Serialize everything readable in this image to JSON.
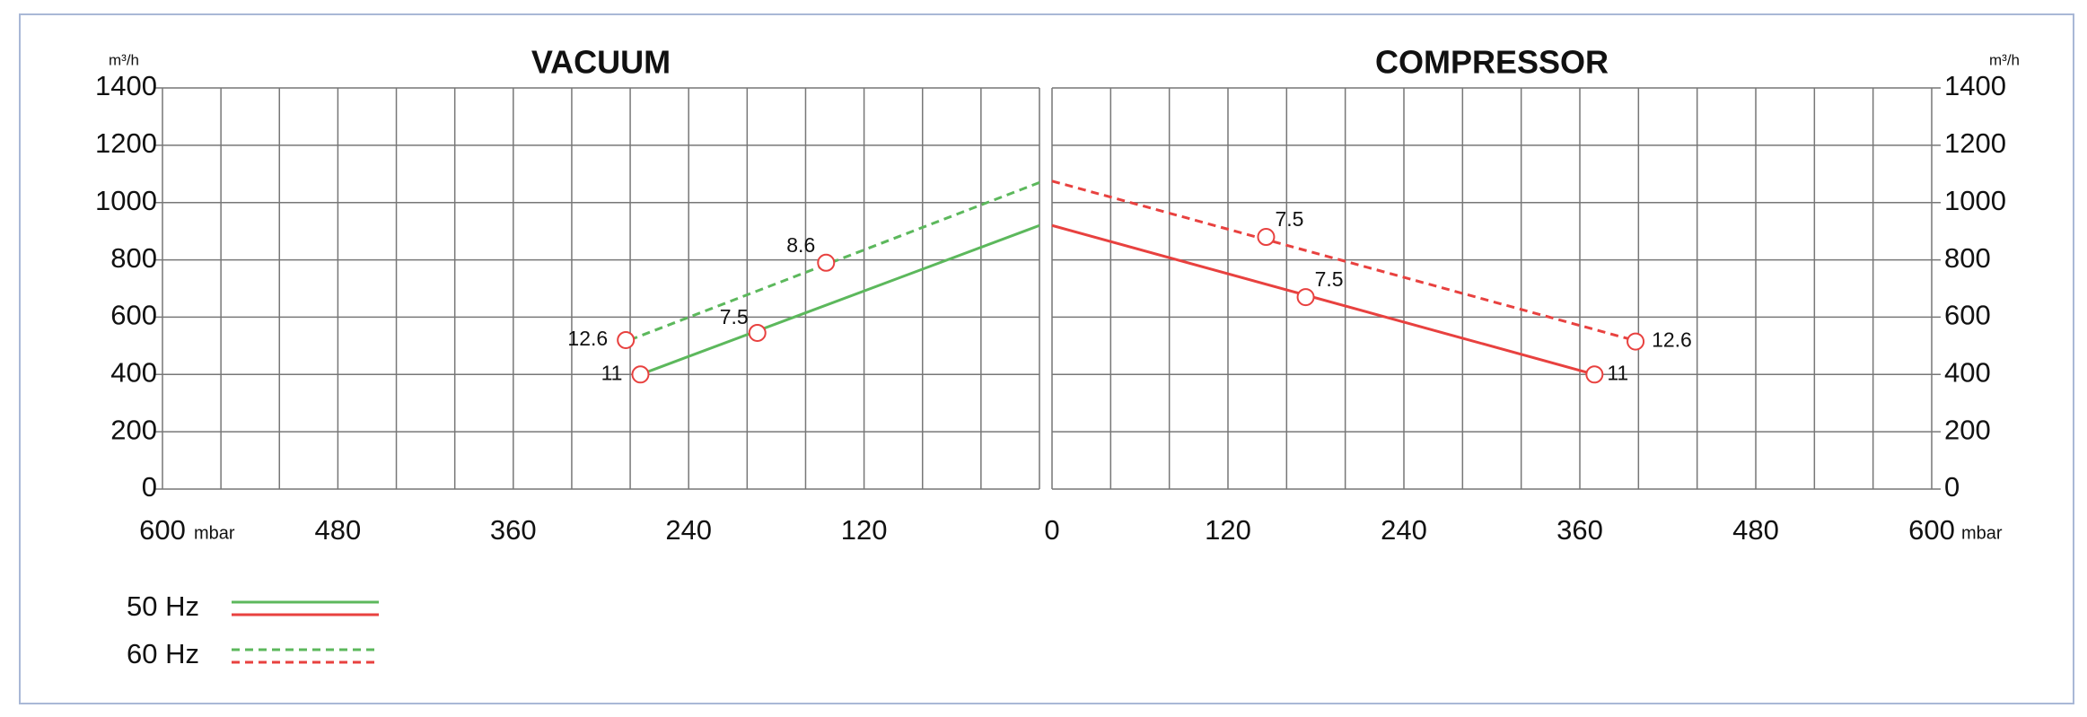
{
  "chart_data": [
    {
      "type": "line",
      "title": "VACUUM",
      "y_label": "m³/h",
      "x_label": "mbar",
      "y_axis": "left",
      "xlim": [
        600,
        0
      ],
      "ylim": [
        0,
        1400
      ],
      "xticks": [
        600,
        480,
        360,
        240,
        120
      ],
      "xgrid": [
        600,
        560,
        520,
        480,
        440,
        400,
        360,
        320,
        280,
        240,
        200,
        160,
        120,
        80,
        40,
        0
      ],
      "yticks": [
        0,
        200,
        400,
        600,
        800,
        1000,
        1200,
        1400
      ],
      "grid": true,
      "series": [
        {
          "color": "#5cb85c",
          "style": "solid",
          "x": [
            0,
            273
          ],
          "values": [
            920,
            400
          ]
        },
        {
          "color": "#5cb85c",
          "style": "dashed",
          "x": [
            0,
            278
          ],
          "values": [
            1070,
            525
          ]
        }
      ],
      "marker_color": "#e8413f",
      "markers": [
        {
          "x": 283,
          "y": 520,
          "label": "12.6"
        },
        {
          "x": 146,
          "y": 790,
          "label": "8.6"
        },
        {
          "x": 273,
          "y": 400,
          "label": "11"
        },
        {
          "x": 193,
          "y": 545,
          "label": "7.5"
        }
      ]
    },
    {
      "type": "line",
      "title": "COMPRESSOR",
      "y_label": "m³/h",
      "x_label": "mbar",
      "y_axis": "right",
      "xlim": [
        0,
        600
      ],
      "ylim": [
        0,
        1400
      ],
      "xticks": [
        0,
        120,
        240,
        360,
        480,
        600
      ],
      "xgrid": [
        0,
        40,
        80,
        120,
        160,
        200,
        240,
        280,
        320,
        360,
        400,
        440,
        480,
        520,
        560,
        600
      ],
      "yticks": [
        0,
        200,
        400,
        600,
        800,
        1000,
        1200,
        1400
      ],
      "grid": true,
      "series": [
        {
          "color": "#e8413f",
          "style": "solid",
          "x": [
            0,
            370
          ],
          "values": [
            920,
            400
          ]
        },
        {
          "color": "#e8413f",
          "style": "dashed",
          "x": [
            0,
            400
          ],
          "values": [
            1075,
            515
          ]
        }
      ],
      "marker_color": "#e8413f",
      "markers": [
        {
          "x": 146,
          "y": 880,
          "label": "7.5"
        },
        {
          "x": 398,
          "y": 515,
          "label": "12.6"
        },
        {
          "x": 370,
          "y": 400,
          "label": "11"
        },
        {
          "x": 173,
          "y": 670,
          "label": "7.5"
        }
      ]
    }
  ],
  "legend": [
    {
      "label": "50 Hz",
      "style": "solid",
      "colors": [
        "#5cb85c",
        "#e8413f"
      ]
    },
    {
      "label": "60 Hz",
      "style": "dashed",
      "colors": [
        "#5cb85c",
        "#e8413f"
      ]
    }
  ]
}
